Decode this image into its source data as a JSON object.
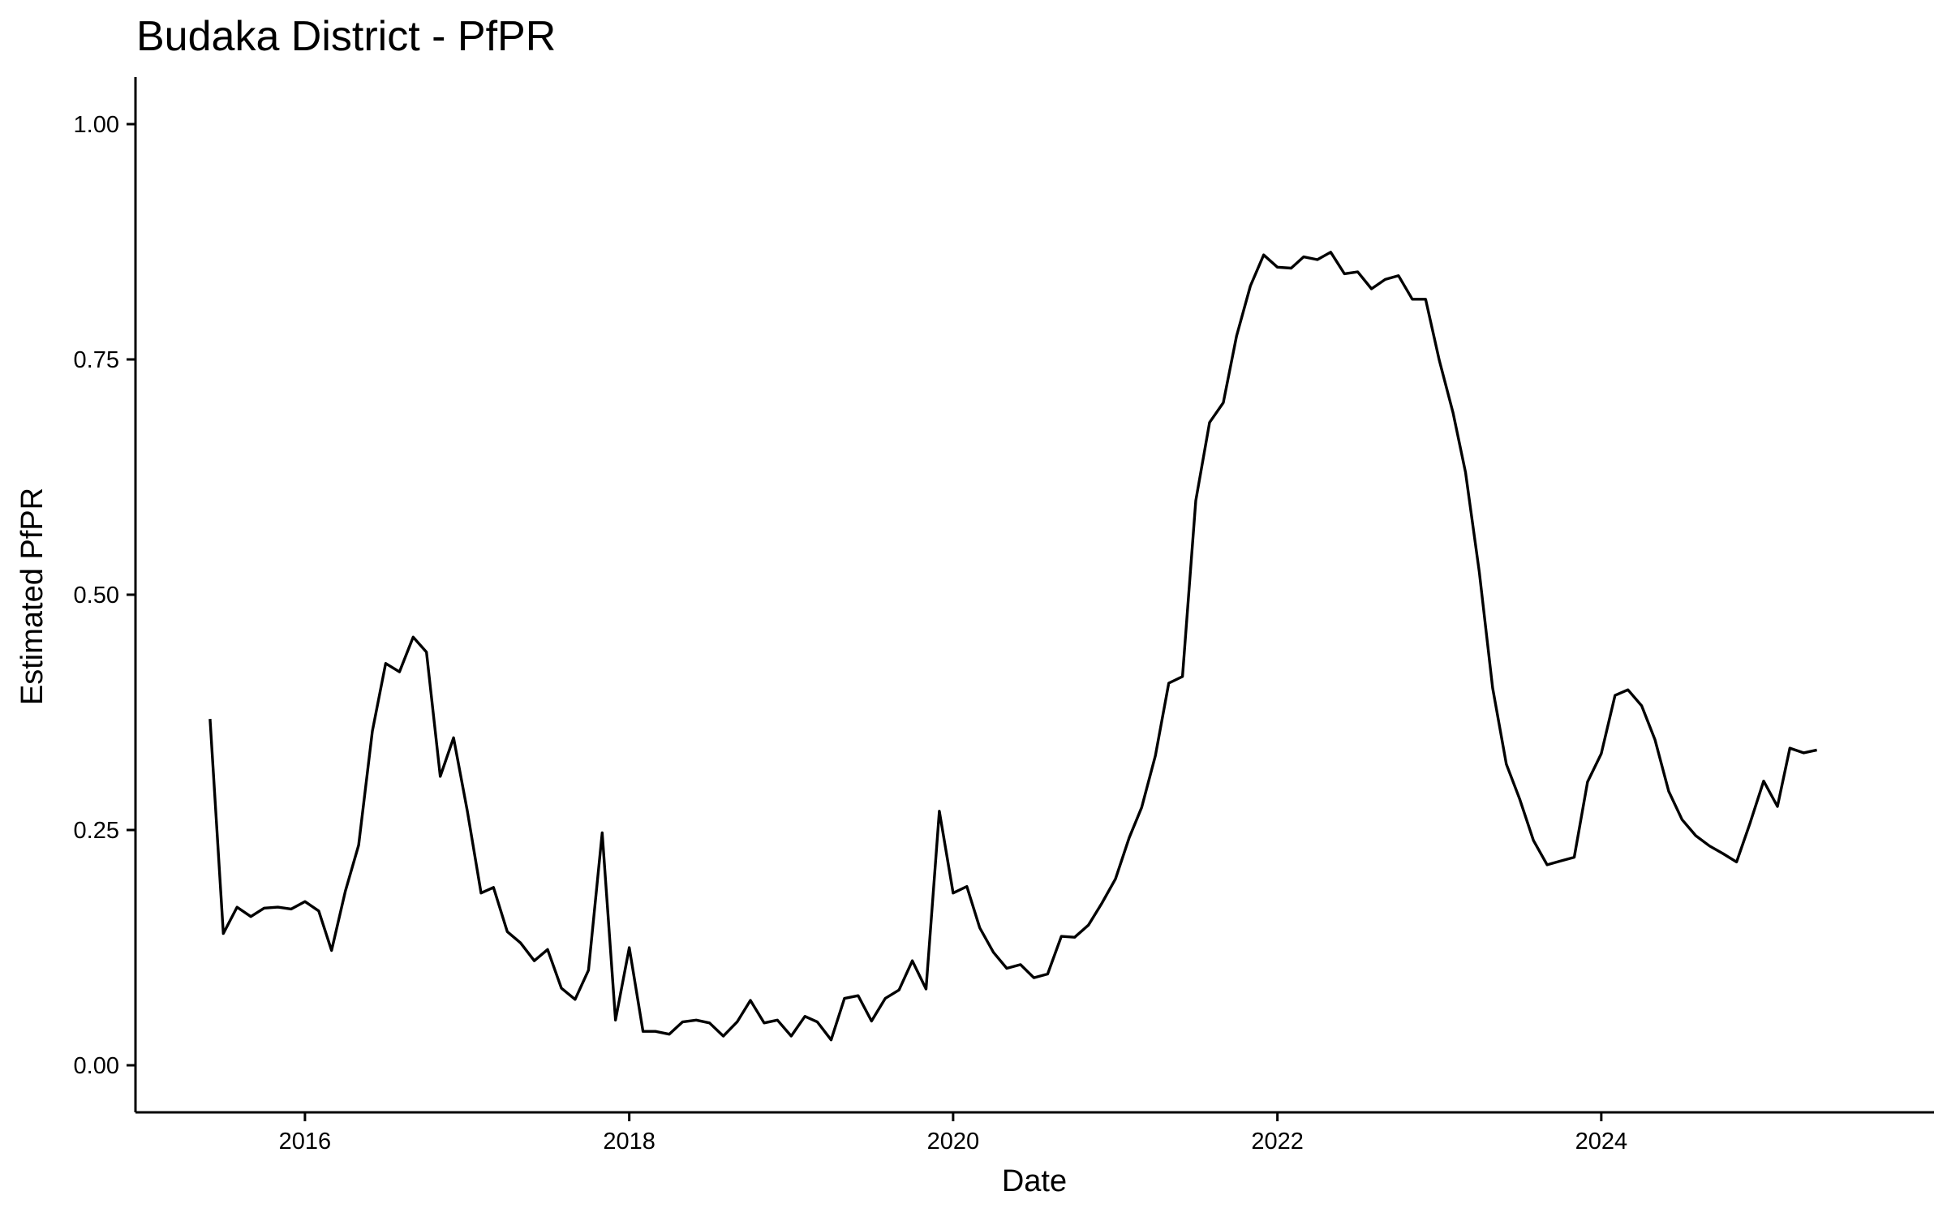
{
  "chart_data": {
    "type": "line",
    "title": "Budaka District - PfPR",
    "xlabel": "Date",
    "ylabel": "Estimated PfPR",
    "xlim": [
      "2014-12-15",
      "2026-01-20"
    ],
    "ylim": [
      -0.05,
      1.05
    ],
    "x_ticks": [
      "2016",
      "2018",
      "2020",
      "2022",
      "2024"
    ],
    "y_ticks": [
      "0.00",
      "0.25",
      "0.50",
      "0.75",
      "1.00"
    ],
    "grid": false,
    "legend": "none",
    "line_color": "#000000",
    "series": [
      {
        "x": [
          "2015-06",
          "2015-07",
          "2015-08",
          "2015-09",
          "2015-10",
          "2015-11",
          "2015-12",
          "2016-01",
          "2016-02",
          "2016-03",
          "2016-04",
          "2016-05",
          "2016-06",
          "2016-07",
          "2016-08",
          "2016-09",
          "2016-10",
          "2016-11",
          "2016-12",
          "2017-01",
          "2017-02",
          "2017-03",
          "2017-04",
          "2017-05",
          "2017-06",
          "2017-07",
          "2017-08",
          "2017-09",
          "2017-10",
          "2017-11",
          "2017-12",
          "2018-01",
          "2018-02",
          "2018-03",
          "2018-04",
          "2018-05",
          "2018-06",
          "2018-07",
          "2018-08",
          "2018-09",
          "2018-10",
          "2018-11",
          "2018-12",
          "2019-01",
          "2019-02",
          "2019-03",
          "2019-04",
          "2019-05",
          "2019-06",
          "2019-07",
          "2019-08",
          "2019-09",
          "2019-10",
          "2019-11",
          "2019-12",
          "2020-01",
          "2020-02",
          "2020-03",
          "2020-04",
          "2020-05",
          "2020-06",
          "2020-07",
          "2020-08",
          "2020-09",
          "2020-10",
          "2020-11",
          "2020-12",
          "2021-01",
          "2021-02",
          "2021-03",
          "2021-04",
          "2021-05",
          "2021-06",
          "2021-07",
          "2021-08",
          "2021-09",
          "2021-10",
          "2021-11",
          "2021-12",
          "2022-01",
          "2022-02",
          "2022-03",
          "2022-04",
          "2022-05",
          "2022-06",
          "2022-07",
          "2022-08",
          "2022-09",
          "2022-10",
          "2022-11",
          "2022-12",
          "2023-01",
          "2023-02",
          "2023-03",
          "2023-04",
          "2023-05",
          "2023-06",
          "2023-07",
          "2023-08",
          "2023-09",
          "2023-10",
          "2023-11",
          "2023-12",
          "2024-01",
          "2024-02",
          "2024-03",
          "2024-04",
          "2024-05",
          "2024-06",
          "2024-07",
          "2024-08",
          "2024-09",
          "2024-10",
          "2024-11",
          "2024-12",
          "2025-01",
          "2025-02",
          "2025-03",
          "2025-04",
          "2025-05"
        ],
        "values": [
          0.368,
          0.14,
          0.168,
          0.158,
          0.167,
          0.168,
          0.166,
          0.174,
          0.164,
          0.122,
          0.185,
          0.234,
          0.355,
          0.427,
          0.418,
          0.455,
          0.439,
          0.307,
          0.348,
          0.27,
          0.183,
          0.189,
          0.142,
          0.13,
          0.111,
          0.123,
          0.082,
          0.07,
          0.101,
          0.247,
          0.048,
          0.125,
          0.036,
          0.036,
          0.033,
          0.046,
          0.048,
          0.045,
          0.031,
          0.046,
          0.069,
          0.045,
          0.048,
          0.031,
          0.052,
          0.046,
          0.027,
          0.071,
          0.074,
          0.047,
          0.071,
          0.08,
          0.111,
          0.081,
          0.27,
          0.183,
          0.19,
          0.146,
          0.12,
          0.103,
          0.107,
          0.093,
          0.097,
          0.137,
          0.136,
          0.149,
          0.172,
          0.198,
          0.242,
          0.274,
          0.329,
          0.406,
          0.413,
          0.6,
          0.683,
          0.704,
          0.775,
          0.828,
          0.861,
          0.848,
          0.847,
          0.859,
          0.856,
          0.864,
          0.841,
          0.843,
          0.825,
          0.835,
          0.839,
          0.814,
          0.814,
          0.749,
          0.693,
          0.63,
          0.524,
          0.401,
          0.32,
          0.283,
          0.239,
          0.213,
          0.217,
          0.221,
          0.301,
          0.331,
          0.393,
          0.399,
          0.382,
          0.346,
          0.291,
          0.261,
          0.244,
          0.233,
          0.225,
          0.216,
          0.257,
          0.302,
          0.275,
          0.337,
          0.332,
          0.335
        ]
      }
    ]
  }
}
